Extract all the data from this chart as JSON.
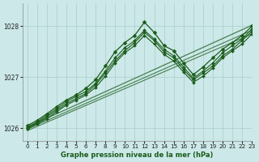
{
  "title": "Graphe pression niveau de la mer (hPa)",
  "bg_color": "#cce8e8",
  "grid_color": "#aacccc",
  "line_color": "#1a5c1a",
  "xlim": [
    -0.5,
    23
  ],
  "ylim": [
    1025.75,
    1028.45
  ],
  "yticks": [
    1026,
    1027,
    1028
  ],
  "xticks": [
    0,
    1,
    2,
    3,
    4,
    5,
    6,
    7,
    8,
    9,
    10,
    11,
    12,
    13,
    14,
    15,
    16,
    17,
    18,
    19,
    20,
    21,
    22,
    23
  ],
  "lines": [
    {
      "x": [
        0,
        1,
        2,
        3,
        4,
        5,
        6,
        7,
        8,
        9,
        10,
        11,
        12,
        13,
        14,
        15,
        16,
        17,
        18,
        19,
        20,
        21,
        22,
        23
      ],
      "y": [
        1026.05,
        1026.15,
        1026.28,
        1026.42,
        1026.55,
        1026.65,
        1026.78,
        1026.95,
        1027.22,
        1027.5,
        1027.68,
        1027.82,
        1028.08,
        1027.88,
        1027.62,
        1027.52,
        1027.28,
        1027.05,
        1027.2,
        1027.38,
        1027.55,
        1027.68,
        1027.82,
        1028.0
      ],
      "lw": 0.9,
      "marker": true,
      "ms": 2.5
    },
    {
      "x": [
        0,
        1,
        2,
        3,
        4,
        5,
        6,
        7,
        8,
        9,
        10,
        11,
        12,
        13,
        14,
        15,
        16,
        17,
        18,
        19,
        20,
        21,
        22,
        23
      ],
      "y": [
        1026.02,
        1026.12,
        1026.25,
        1026.38,
        1026.52,
        1026.62,
        1026.72,
        1026.88,
        1027.12,
        1027.38,
        1027.58,
        1027.72,
        1027.92,
        1027.75,
        1027.55,
        1027.42,
        1027.2,
        1026.98,
        1027.12,
        1027.28,
        1027.48,
        1027.62,
        1027.75,
        1027.95
      ],
      "lw": 0.8,
      "marker": true,
      "ms": 2.0
    },
    {
      "x": [
        0,
        1,
        2,
        3,
        4,
        5,
        6,
        7,
        8,
        9,
        10,
        11,
        12,
        13,
        14,
        15,
        16,
        17,
        18,
        19,
        20,
        21,
        22,
        23
      ],
      "y": [
        1026.0,
        1026.1,
        1026.22,
        1026.35,
        1026.48,
        1026.58,
        1026.68,
        1026.85,
        1027.08,
        1027.32,
        1027.52,
        1027.68,
        1027.88,
        1027.72,
        1027.5,
        1027.38,
        1027.15,
        1026.95,
        1027.08,
        1027.22,
        1027.42,
        1027.55,
        1027.72,
        1027.9
      ],
      "lw": 0.8,
      "marker": true,
      "ms": 2.0
    },
    {
      "x": [
        0,
        1,
        2,
        3,
        4,
        5,
        6,
        7,
        8,
        9,
        10,
        11,
        12,
        13,
        14,
        15,
        16,
        17,
        18,
        19,
        20,
        21,
        22,
        23
      ],
      "y": [
        1025.98,
        1026.08,
        1026.18,
        1026.32,
        1026.45,
        1026.55,
        1026.65,
        1026.8,
        1027.02,
        1027.28,
        1027.48,
        1027.62,
        1027.82,
        1027.65,
        1027.45,
        1027.32,
        1027.1,
        1026.9,
        1027.02,
        1027.18,
        1027.38,
        1027.52,
        1027.65,
        1027.85
      ],
      "lw": 0.8,
      "marker": true,
      "ms": 2.0
    }
  ],
  "trend_lines": [
    {
      "x": [
        0,
        23
      ],
      "y": [
        1026.02,
        1028.02
      ],
      "lw": 0.9
    },
    {
      "x": [
        0,
        23
      ],
      "y": [
        1025.98,
        1027.92
      ],
      "lw": 0.8
    },
    {
      "x": [
        0,
        23
      ],
      "y": [
        1025.95,
        1027.85
      ],
      "lw": 0.8
    }
  ],
  "label_fontsize": 5.5,
  "tick_fontsize": 5.2,
  "xlabel_fontsize": 6.0
}
